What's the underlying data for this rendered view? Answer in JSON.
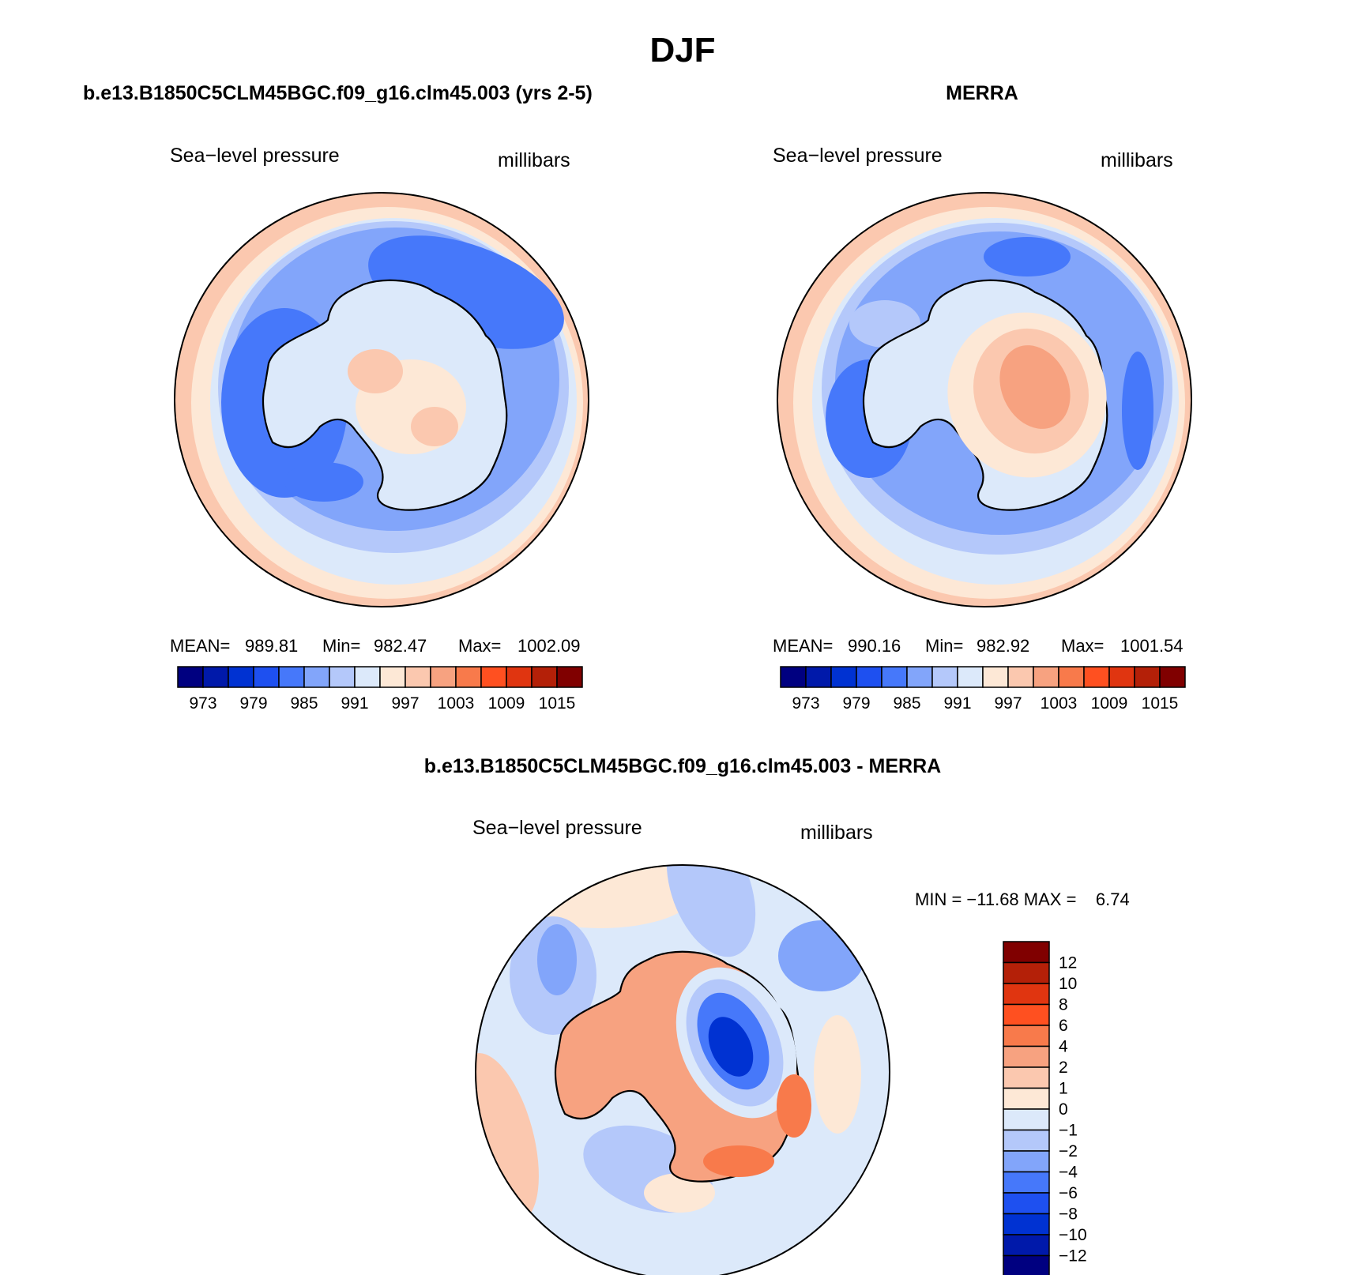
{
  "title": "DJF",
  "palette": [
    "#000080",
    "#0019aa",
    "#0032d2",
    "#1e50f0",
    "#4678fa",
    "#82a5fa",
    "#b4c8fa",
    "#dce9fa",
    "#fde8d6",
    "#fbc8af",
    "#f7a280",
    "#f87a4b",
    "#ff5020",
    "#e03510",
    "#b42008",
    "#800000"
  ],
  "panels": [
    {
      "id": "model",
      "header": "b.e13.B1850C5CLM45BGC.f09_g16.clm45.003 (yrs 2-5)",
      "variable": "Sea−level pressure",
      "units": "millibars",
      "stats": {
        "mean_label": "MEAN=",
        "mean": "989.81",
        "min_label": "Min=",
        "min": "982.47",
        "max_label": "Max=",
        "max": "1002.09"
      },
      "colorbar_ticks": [
        "973",
        "979",
        "985",
        "991",
        "997",
        "1003",
        "1009",
        "1015"
      ]
    },
    {
      "id": "obs",
      "header": "MERRA",
      "variable": "Sea−level pressure",
      "units": "millibars",
      "stats": {
        "mean_label": "MEAN=",
        "mean": "990.16",
        "min_label": "Min=",
        "min": "982.92",
        "max_label": "Max=",
        "max": "1001.54"
      },
      "colorbar_ticks": [
        "973",
        "979",
        "985",
        "991",
        "997",
        "1003",
        "1009",
        "1015"
      ]
    }
  ],
  "diff": {
    "header": "b.e13.B1850C5CLM45BGC.f09_g16.clm45.003 - MERRA",
    "variable": "Sea−level pressure",
    "units": "millibars",
    "minmax": "MIN = −11.68 MAX =    6.74",
    "colorbar_labels": [
      "12",
      "10",
      "8",
      "6",
      "4",
      "2",
      "1",
      "0",
      "−1",
      "−2",
      "−4",
      "−6",
      "−8",
      "−10",
      "−12"
    ]
  }
}
